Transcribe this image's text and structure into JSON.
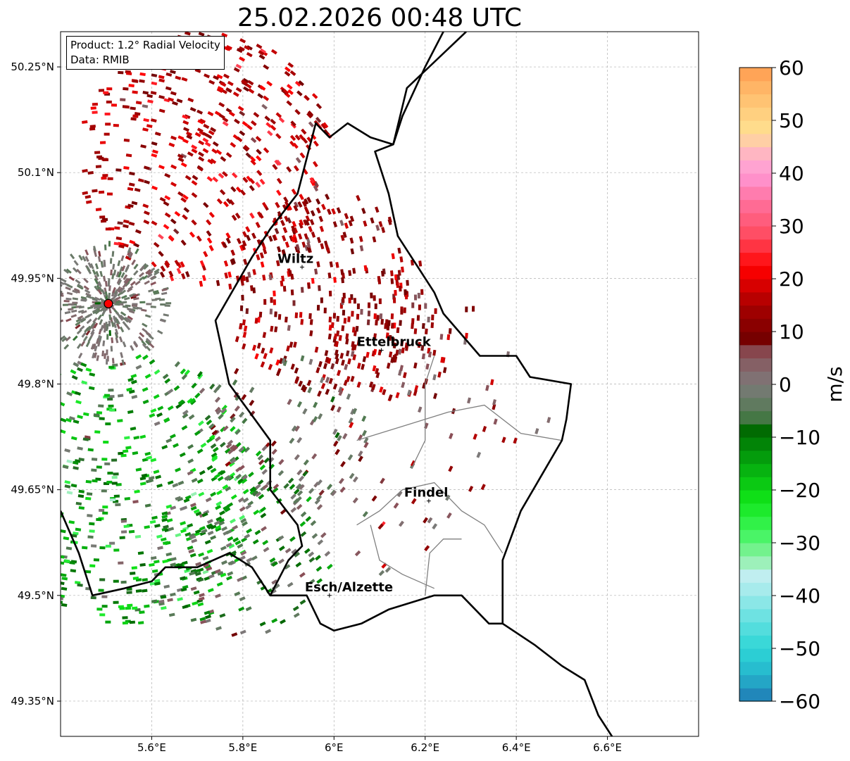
{
  "chart_data": {
    "type": "heatmap",
    "title": "25.02.2026 00:48 UTC",
    "product_label": "Product: 1.2° Radial Velocity",
    "data_label": "Data: RMIB",
    "lon_range": [
      5.4,
      6.8
    ],
    "lat_range": [
      49.3,
      50.3
    ],
    "x_ticks": [
      5.6,
      5.8,
      6.0,
      6.2,
      6.4,
      6.6
    ],
    "x_tick_labels": [
      "5.6°E",
      "5.8°E",
      "6°E",
      "6.2°E",
      "6.4°E",
      "6.6°E"
    ],
    "y_ticks": [
      49.35,
      49.5,
      49.65,
      49.8,
      49.95,
      50.1,
      50.25
    ],
    "y_tick_labels": [
      "49.35°N",
      "49.5°N",
      "49.65°N",
      "49.8°N",
      "49.95°N",
      "50.1°N",
      "50.25°N"
    ],
    "grid": true,
    "radar_site": {
      "lon": 5.505,
      "lat": 49.914
    },
    "cities": [
      {
        "name": "Wiltz",
        "lon": 5.93,
        "lat": 49.966
      },
      {
        "name": "Ettelbruck",
        "lon": 6.104,
        "lat": 49.848
      },
      {
        "name": "Findel",
        "lon": 6.208,
        "lat": 49.634
      },
      {
        "name": "Esch/Alzette",
        "lon": 5.99,
        "lat": 49.5
      }
    ],
    "colorbar": {
      "label": "m/s",
      "min": -60,
      "max": 60,
      "ticks": [
        -60,
        -50,
        -40,
        -30,
        -20,
        -10,
        0,
        10,
        20,
        30,
        40,
        50,
        60
      ],
      "tick_labels": [
        "−60",
        "−50",
        "−40",
        "−30",
        "−20",
        "−10",
        "0",
        "10",
        "20",
        "30",
        "40",
        "50",
        "60"
      ],
      "stops": [
        {
          "v": -60,
          "color": "#1f77b4"
        },
        {
          "v": -55,
          "color": "#25b5cc"
        },
        {
          "v": -50,
          "color": "#2ed6d6"
        },
        {
          "v": -45,
          "color": "#5fdfdf"
        },
        {
          "v": -40,
          "color": "#9ae9ea"
        },
        {
          "v": -36,
          "color": "#c2eef0"
        },
        {
          "v": -33,
          "color": "#90f0a8"
        },
        {
          "v": -28,
          "color": "#3ef55c"
        },
        {
          "v": -22,
          "color": "#10e618"
        },
        {
          "v": -15,
          "color": "#05a80e"
        },
        {
          "v": -8,
          "color": "#006400"
        },
        {
          "v": -6,
          "color": "#4f7a4f"
        },
        {
          "v": 0,
          "color": "#7d7a7a"
        },
        {
          "v": 6,
          "color": "#8a5058"
        },
        {
          "v": 8,
          "color": "#700000"
        },
        {
          "v": 15,
          "color": "#a80000"
        },
        {
          "v": 22,
          "color": "#ff0000"
        },
        {
          "v": 28,
          "color": "#ff4a5e"
        },
        {
          "v": 35,
          "color": "#ff72a0"
        },
        {
          "v": 40,
          "color": "#ff9ad8"
        },
        {
          "v": 44,
          "color": "#ffb8c0"
        },
        {
          "v": 48,
          "color": "#ffe090"
        },
        {
          "v": 55,
          "color": "#ffbd6d"
        },
        {
          "v": 60,
          "color": "#ff9b50"
        }
      ]
    },
    "regions": [
      {
        "name": "north-receding-core",
        "center": [
          5.72,
          50.12
        ],
        "radius": 0.28,
        "velocity": 16,
        "spread": 5,
        "density": 0.8
      },
      {
        "name": "east-receding-band",
        "center": [
          5.98,
          49.93
        ],
        "radius": 0.22,
        "velocity": 13,
        "spread": 4,
        "density": 0.75
      },
      {
        "name": "ettelbruck-receding",
        "center": [
          6.12,
          49.86
        ],
        "radius": 0.14,
        "velocity": 11,
        "spread": 5,
        "density": 0.55
      },
      {
        "name": "southwest-approaching",
        "center": [
          5.55,
          49.65
        ],
        "radius": 0.3,
        "velocity": -13,
        "spread": 8,
        "density": 0.8
      },
      {
        "name": "south-mixed",
        "center": [
          5.8,
          49.57
        ],
        "radius": 0.2,
        "velocity": -5,
        "spread": 6,
        "density": 0.55
      },
      {
        "name": "central-near-zero",
        "center": [
          5.9,
          49.73
        ],
        "radius": 0.18,
        "velocity": 2,
        "spread": 6,
        "density": 0.5
      },
      {
        "name": "scattered-east",
        "center": [
          6.3,
          49.78
        ],
        "radius": 0.2,
        "velocity": 9,
        "spread": 6,
        "density": 0.12
      },
      {
        "name": "scattered-southeast",
        "center": [
          6.15,
          49.6
        ],
        "radius": 0.12,
        "velocity": 3,
        "spread": 10,
        "density": 0.18
      }
    ],
    "borders": {
      "luxembourg": [
        [
          6.29,
          50.3
        ],
        [
          6.16,
          50.22
        ],
        [
          6.13,
          50.14
        ],
        [
          6.08,
          50.15
        ],
        [
          6.03,
          50.17
        ],
        [
          5.99,
          50.15
        ],
        [
          5.96,
          50.17
        ],
        [
          5.92,
          50.07
        ],
        [
          5.86,
          50.02
        ],
        [
          5.82,
          49.98
        ],
        [
          5.74,
          49.89
        ],
        [
          5.75,
          49.86
        ],
        [
          5.77,
          49.8
        ],
        [
          5.86,
          49.72
        ],
        [
          5.86,
          49.65
        ],
        [
          5.92,
          49.6
        ],
        [
          5.93,
          49.57
        ],
        [
          5.9,
          49.55
        ],
        [
          5.86,
          49.5
        ],
        [
          5.94,
          49.5
        ],
        [
          5.97,
          49.46
        ],
        [
          6.0,
          49.45
        ],
        [
          6.06,
          49.46
        ],
        [
          6.12,
          49.48
        ],
        [
          6.22,
          49.5
        ],
        [
          6.28,
          49.5
        ],
        [
          6.34,
          49.46
        ],
        [
          6.37,
          49.46
        ],
        [
          6.37,
          49.55
        ],
        [
          6.41,
          49.62
        ],
        [
          6.5,
          49.72
        ],
        [
          6.51,
          49.75
        ],
        [
          6.52,
          49.8
        ],
        [
          6.43,
          49.81
        ],
        [
          6.4,
          49.84
        ],
        [
          6.32,
          49.84
        ],
        [
          6.28,
          49.87
        ],
        [
          6.24,
          49.9
        ],
        [
          6.22,
          49.93
        ],
        [
          6.18,
          49.97
        ],
        [
          6.14,
          50.01
        ],
        [
          6.12,
          50.07
        ],
        [
          6.09,
          50.13
        ],
        [
          6.13,
          50.14
        ]
      ],
      "belgium_france": [
        [
          5.4,
          49.62
        ],
        [
          5.44,
          49.56
        ],
        [
          5.47,
          49.5
        ],
        [
          5.54,
          49.51
        ],
        [
          5.6,
          49.52
        ],
        [
          5.63,
          49.54
        ],
        [
          5.7,
          49.54
        ],
        [
          5.77,
          49.56
        ],
        [
          5.82,
          49.54
        ],
        [
          5.86,
          49.5
        ]
      ],
      "france_germany": [
        [
          6.37,
          49.46
        ],
        [
          6.44,
          49.43
        ],
        [
          6.5,
          49.4
        ],
        [
          6.55,
          49.38
        ],
        [
          6.58,
          49.33
        ],
        [
          6.62,
          49.29
        ],
        [
          6.63,
          49.28
        ]
      ],
      "germany_east": [
        [
          6.13,
          50.14
        ],
        [
          6.15,
          50.18
        ],
        [
          6.2,
          50.25
        ],
        [
          6.24,
          50.3
        ]
      ],
      "internal_lines": [
        [
          [
            6.05,
            49.6
          ],
          [
            6.1,
            49.62
          ],
          [
            6.15,
            49.65
          ],
          [
            6.22,
            49.66
          ],
          [
            6.28,
            49.62
          ],
          [
            6.33,
            49.6
          ],
          [
            6.37,
            49.56
          ]
        ],
        [
          [
            6.2,
            49.5
          ],
          [
            6.21,
            49.56
          ],
          [
            6.24,
            49.58
          ],
          [
            6.28,
            49.58
          ]
        ],
        [
          [
            6.05,
            49.72
          ],
          [
            6.15,
            49.74
          ],
          [
            6.25,
            49.76
          ],
          [
            6.33,
            49.77
          ],
          [
            6.41,
            49.73
          ],
          [
            6.5,
            49.72
          ]
        ],
        [
          [
            6.08,
            49.6
          ],
          [
            6.1,
            49.55
          ],
          [
            6.15,
            49.53
          ],
          [
            6.22,
            49.51
          ]
        ],
        [
          [
            6.17,
            49.68
          ],
          [
            6.2,
            49.72
          ],
          [
            6.2,
            49.8
          ],
          [
            6.22,
            49.84
          ]
        ]
      ]
    }
  }
}
